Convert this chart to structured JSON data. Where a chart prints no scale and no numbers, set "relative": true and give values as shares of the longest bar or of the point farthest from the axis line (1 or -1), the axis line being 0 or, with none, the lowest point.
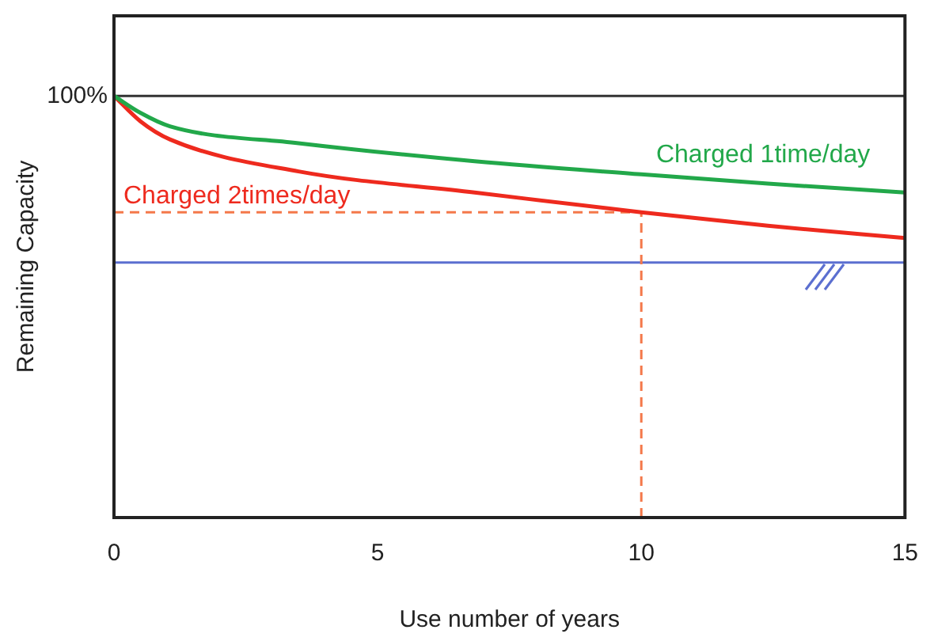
{
  "chart_data": {
    "type": "line",
    "relative": true,
    "xlabel": "Use number of years",
    "ylabel": "Remaining Capacity",
    "xlim": [
      0,
      15
    ],
    "xticks": [
      0,
      5,
      10,
      15
    ],
    "grid": false,
    "legend": false,
    "marker": "none",
    "line_style": "solid",
    "series": [
      {
        "name": "Charged 1time/day",
        "color": "#22a84a",
        "x": [
          0,
          0.5,
          1.06,
          3.5,
          6.84,
          10,
          12.4,
          15
        ],
        "values": [
          1,
          0.96,
          0.928,
          0.888,
          0.845,
          0.814,
          0.792,
          0.771
        ]
      },
      {
        "name": "Charged 2times/day",
        "color": "#ee2a1e",
        "x": [
          0,
          0.5,
          1.06,
          3.5,
          6.84,
          10,
          12.4,
          15
        ],
        "values": [
          1,
          0.94,
          0.897,
          0.821,
          0.771,
          0.724,
          0.692,
          0.663
        ]
      }
    ],
    "ref_lines": [
      {
        "axis": "y",
        "value": 1,
        "label": "100%",
        "color": "#333333",
        "line_style": "solid"
      },
      {
        "axis": "y",
        "value": 0.605,
        "color": "#5b6fd0",
        "line_style": "solid"
      },
      {
        "axis": "x",
        "value": 10,
        "color": "#f4784a",
        "line_style": "dashed"
      },
      {
        "axis": "y",
        "value": 0.724,
        "color": "#f4784a",
        "line_style": "dashed"
      }
    ]
  }
}
